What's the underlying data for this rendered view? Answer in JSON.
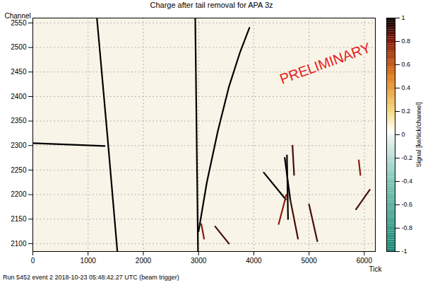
{
  "chart_data": {
    "type": "heatmap",
    "title": "Charge after tail removal for APA 3z",
    "x_label": "Tick",
    "y_label": "Channel",
    "caption": "Run 5452 event 2 2018-10-23 05:48:42.27 UTC (beam trigger)",
    "annotations": [
      "PRELIMINARY"
    ],
    "xlim": [
      0,
      6200
    ],
    "xticks": [
      0,
      1000,
      2000,
      3000,
      4000,
      5000,
      6000
    ],
    "ylim": [
      2084,
      2560
    ],
    "yticks": [
      2100,
      2150,
      2200,
      2250,
      2300,
      2350,
      2400,
      2450,
      2500,
      2550
    ],
    "grid": true,
    "tracks": [
      {
        "x": [
          0,
          1300
        ],
        "y": [
          2305,
          2299
        ],
        "signal": 1
      },
      {
        "x": [
          1160,
          1350,
          1530
        ],
        "y": [
          2560,
          2320,
          2084
        ],
        "signal": 1
      },
      {
        "x": [
          2940,
          2990
        ],
        "y": [
          2560,
          2084
        ],
        "signal": 1
      },
      {
        "x": [
          3000,
          3150,
          3350,
          3550,
          3750,
          3920
        ],
        "y": [
          2125,
          2225,
          2330,
          2420,
          2490,
          2540
        ],
        "signal": 1
      },
      {
        "x": [
          3050,
          3100
        ],
        "y": [
          2140,
          2110
        ],
        "signal": 0.8
      },
      {
        "x": [
          3300,
          3550
        ],
        "y": [
          2135,
          2100
        ],
        "signal": 0.9
      },
      {
        "x": [
          4180,
          4580
        ],
        "y": [
          2245,
          2190
        ],
        "signal": 1
      },
      {
        "x": [
          4560,
          4660
        ],
        "y": [
          2275,
          2190
        ],
        "signal": 1
      },
      {
        "x": [
          4600,
          4620
        ],
        "y": [
          2280,
          2150
        ],
        "signal": 1
      },
      {
        "x": [
          4660,
          4800
        ],
        "y": [
          2190,
          2110
        ],
        "signal": 0.9
      },
      {
        "x": [
          4450,
          4590
        ],
        "y": [
          2140,
          2200
        ],
        "signal": 0.8
      },
      {
        "x": [
          4700,
          4730
        ],
        "y": [
          2300,
          2240
        ],
        "signal": 0.9
      },
      {
        "x": [
          5000,
          5150
        ],
        "y": [
          2180,
          2105
        ],
        "signal": 0.9
      },
      {
        "x": [
          5850,
          6100
        ],
        "y": [
          2170,
          2210
        ],
        "signal": 0.9
      },
      {
        "x": [
          5900,
          5930
        ],
        "y": [
          2270,
          2240
        ],
        "signal": 0.8
      }
    ],
    "colorbar": {
      "label": "Signal [ke/tick/channel]",
      "lim": [
        -1,
        1
      ],
      "ticks": [
        -1,
        -0.8,
        -0.6,
        -0.4,
        -0.2,
        0,
        0.2,
        0.4,
        0.6,
        0.8,
        1
      ]
    }
  }
}
